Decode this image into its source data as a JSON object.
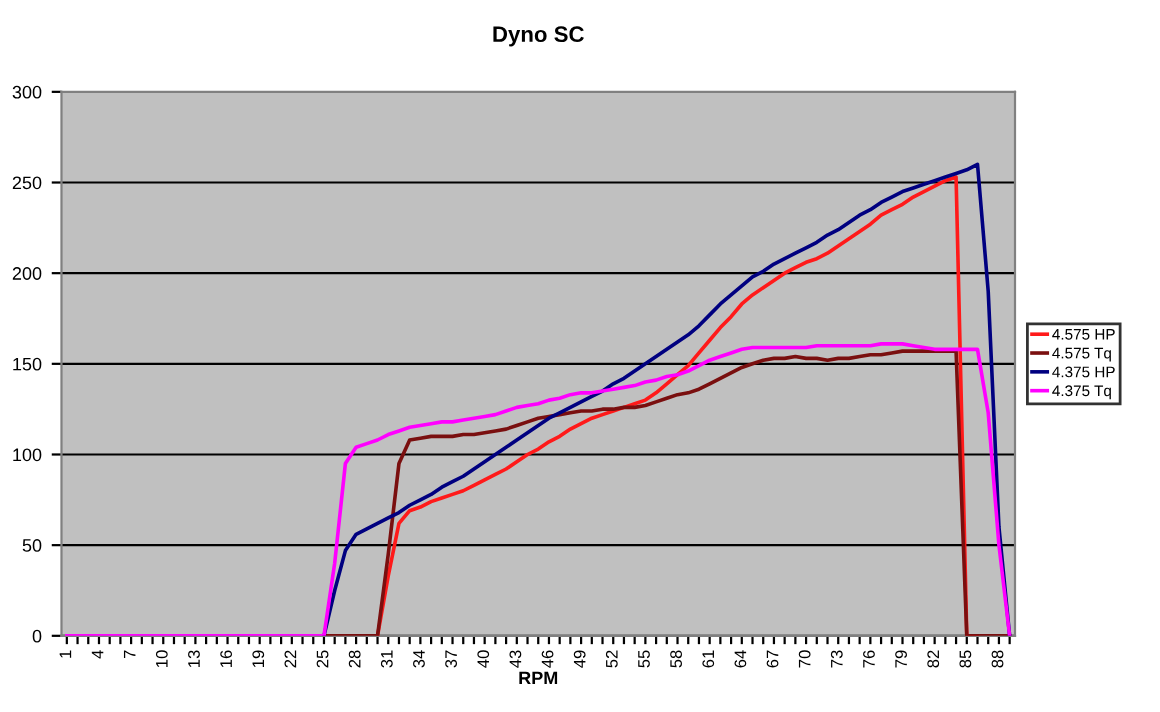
{
  "chart_data": {
    "type": "line",
    "title": "Dyno SC",
    "xlabel": "RPM",
    "categories": [
      "1",
      null,
      null,
      "4",
      null,
      null,
      "7",
      null,
      null,
      "10",
      null,
      null,
      "13",
      null,
      null,
      "16",
      null,
      null,
      "19",
      null,
      null,
      "22",
      null,
      null,
      "25",
      null,
      null,
      "28",
      null,
      null,
      "31",
      null,
      null,
      "34",
      null,
      null,
      "37",
      null,
      null,
      "40",
      null,
      null,
      "43",
      null,
      null,
      "46",
      null,
      null,
      "49",
      null,
      null,
      "52",
      null,
      null,
      "55",
      null,
      null,
      "58",
      null,
      null,
      "61",
      null,
      null,
      "64",
      null,
      null,
      "67",
      null,
      null,
      "70",
      null,
      null,
      "73",
      null,
      null,
      "76",
      null,
      null,
      "79",
      null,
      null,
      "82",
      null,
      null,
      "85",
      null,
      null,
      "88",
      null
    ],
    "series": [
      {
        "name": "4.575 HP",
        "color": "#ff1a1a",
        "values": [
          null,
          null,
          null,
          null,
          null,
          null,
          null,
          null,
          null,
          null,
          null,
          null,
          null,
          null,
          null,
          null,
          null,
          null,
          null,
          null,
          null,
          null,
          null,
          null,
          null,
          null,
          null,
          null,
          null,
          0,
          33,
          62,
          69,
          71,
          74,
          76,
          78,
          80,
          83,
          86,
          89,
          92,
          96,
          100,
          103,
          107,
          110,
          114,
          117,
          120,
          122,
          124,
          126,
          128,
          130,
          134,
          139,
          144,
          149,
          156,
          163,
          170,
          176,
          183,
          188,
          192,
          196,
          200,
          203,
          206,
          208,
          211,
          215,
          219,
          223,
          227,
          232,
          235,
          238,
          242,
          245,
          248,
          251,
          253,
          0,
          0,
          null,
          null,
          null
        ]
      },
      {
        "name": "4.575 Tq",
        "color": "#7a0f0f",
        "values": [
          null,
          null,
          null,
          null,
          null,
          null,
          null,
          null,
          null,
          null,
          null,
          null,
          null,
          null,
          null,
          null,
          null,
          null,
          null,
          null,
          null,
          null,
          null,
          null,
          0,
          0,
          0,
          0,
          0,
          0,
          45,
          95,
          108,
          109,
          110,
          110,
          110,
          111,
          111,
          112,
          113,
          114,
          116,
          118,
          120,
          121,
          122,
          123,
          124,
          124,
          125,
          125,
          126,
          126,
          127,
          129,
          131,
          133,
          134,
          136,
          139,
          142,
          145,
          148,
          150,
          152,
          153,
          153,
          154,
          153,
          153,
          152,
          153,
          153,
          154,
          155,
          155,
          156,
          157,
          157,
          157,
          157,
          157,
          157,
          0,
          0,
          0,
          0,
          0
        ]
      },
      {
        "name": "4.375 HP",
        "color": "#000080",
        "values": [
          null,
          null,
          null,
          null,
          null,
          null,
          null,
          null,
          null,
          null,
          null,
          null,
          null,
          null,
          null,
          null,
          null,
          null,
          null,
          null,
          null,
          null,
          null,
          null,
          0,
          25,
          47,
          56,
          59,
          62,
          65,
          68,
          72,
          75,
          78,
          82,
          85,
          88,
          92,
          96,
          100,
          104,
          108,
          112,
          116,
          120,
          123,
          126,
          129,
          132,
          135,
          139,
          142,
          146,
          150,
          154,
          158,
          162,
          166,
          171,
          177,
          183,
          188,
          193,
          198,
          201,
          205,
          208,
          211,
          214,
          217,
          221,
          224,
          228,
          232,
          235,
          239,
          242,
          245,
          247,
          249,
          251,
          253,
          255,
          257,
          260,
          190,
          60,
          0
        ]
      },
      {
        "name": "4.375 Tq",
        "color": "#ff00ff",
        "values": [
          0,
          0,
          0,
          0,
          0,
          0,
          0,
          0,
          0,
          0,
          0,
          0,
          0,
          0,
          0,
          0,
          0,
          0,
          0,
          0,
          0,
          0,
          0,
          0,
          0,
          40,
          95,
          104,
          106,
          108,
          111,
          113,
          115,
          116,
          117,
          118,
          118,
          119,
          120,
          121,
          122,
          124,
          126,
          127,
          128,
          130,
          131,
          133,
          134,
          134,
          135,
          136,
          137,
          138,
          140,
          141,
          143,
          144,
          146,
          149,
          152,
          154,
          156,
          158,
          159,
          159,
          159,
          159,
          159,
          159,
          160,
          160,
          160,
          160,
          160,
          160,
          161,
          161,
          161,
          160,
          159,
          158,
          158,
          158,
          158,
          158,
          123,
          50,
          0
        ]
      }
    ],
    "ylim": [
      0,
      300
    ],
    "yticks": [
      0,
      50,
      100,
      150,
      200,
      250,
      300
    ],
    "grid": "y",
    "legend": "right",
    "marker": "none",
    "line_style": "solid"
  }
}
